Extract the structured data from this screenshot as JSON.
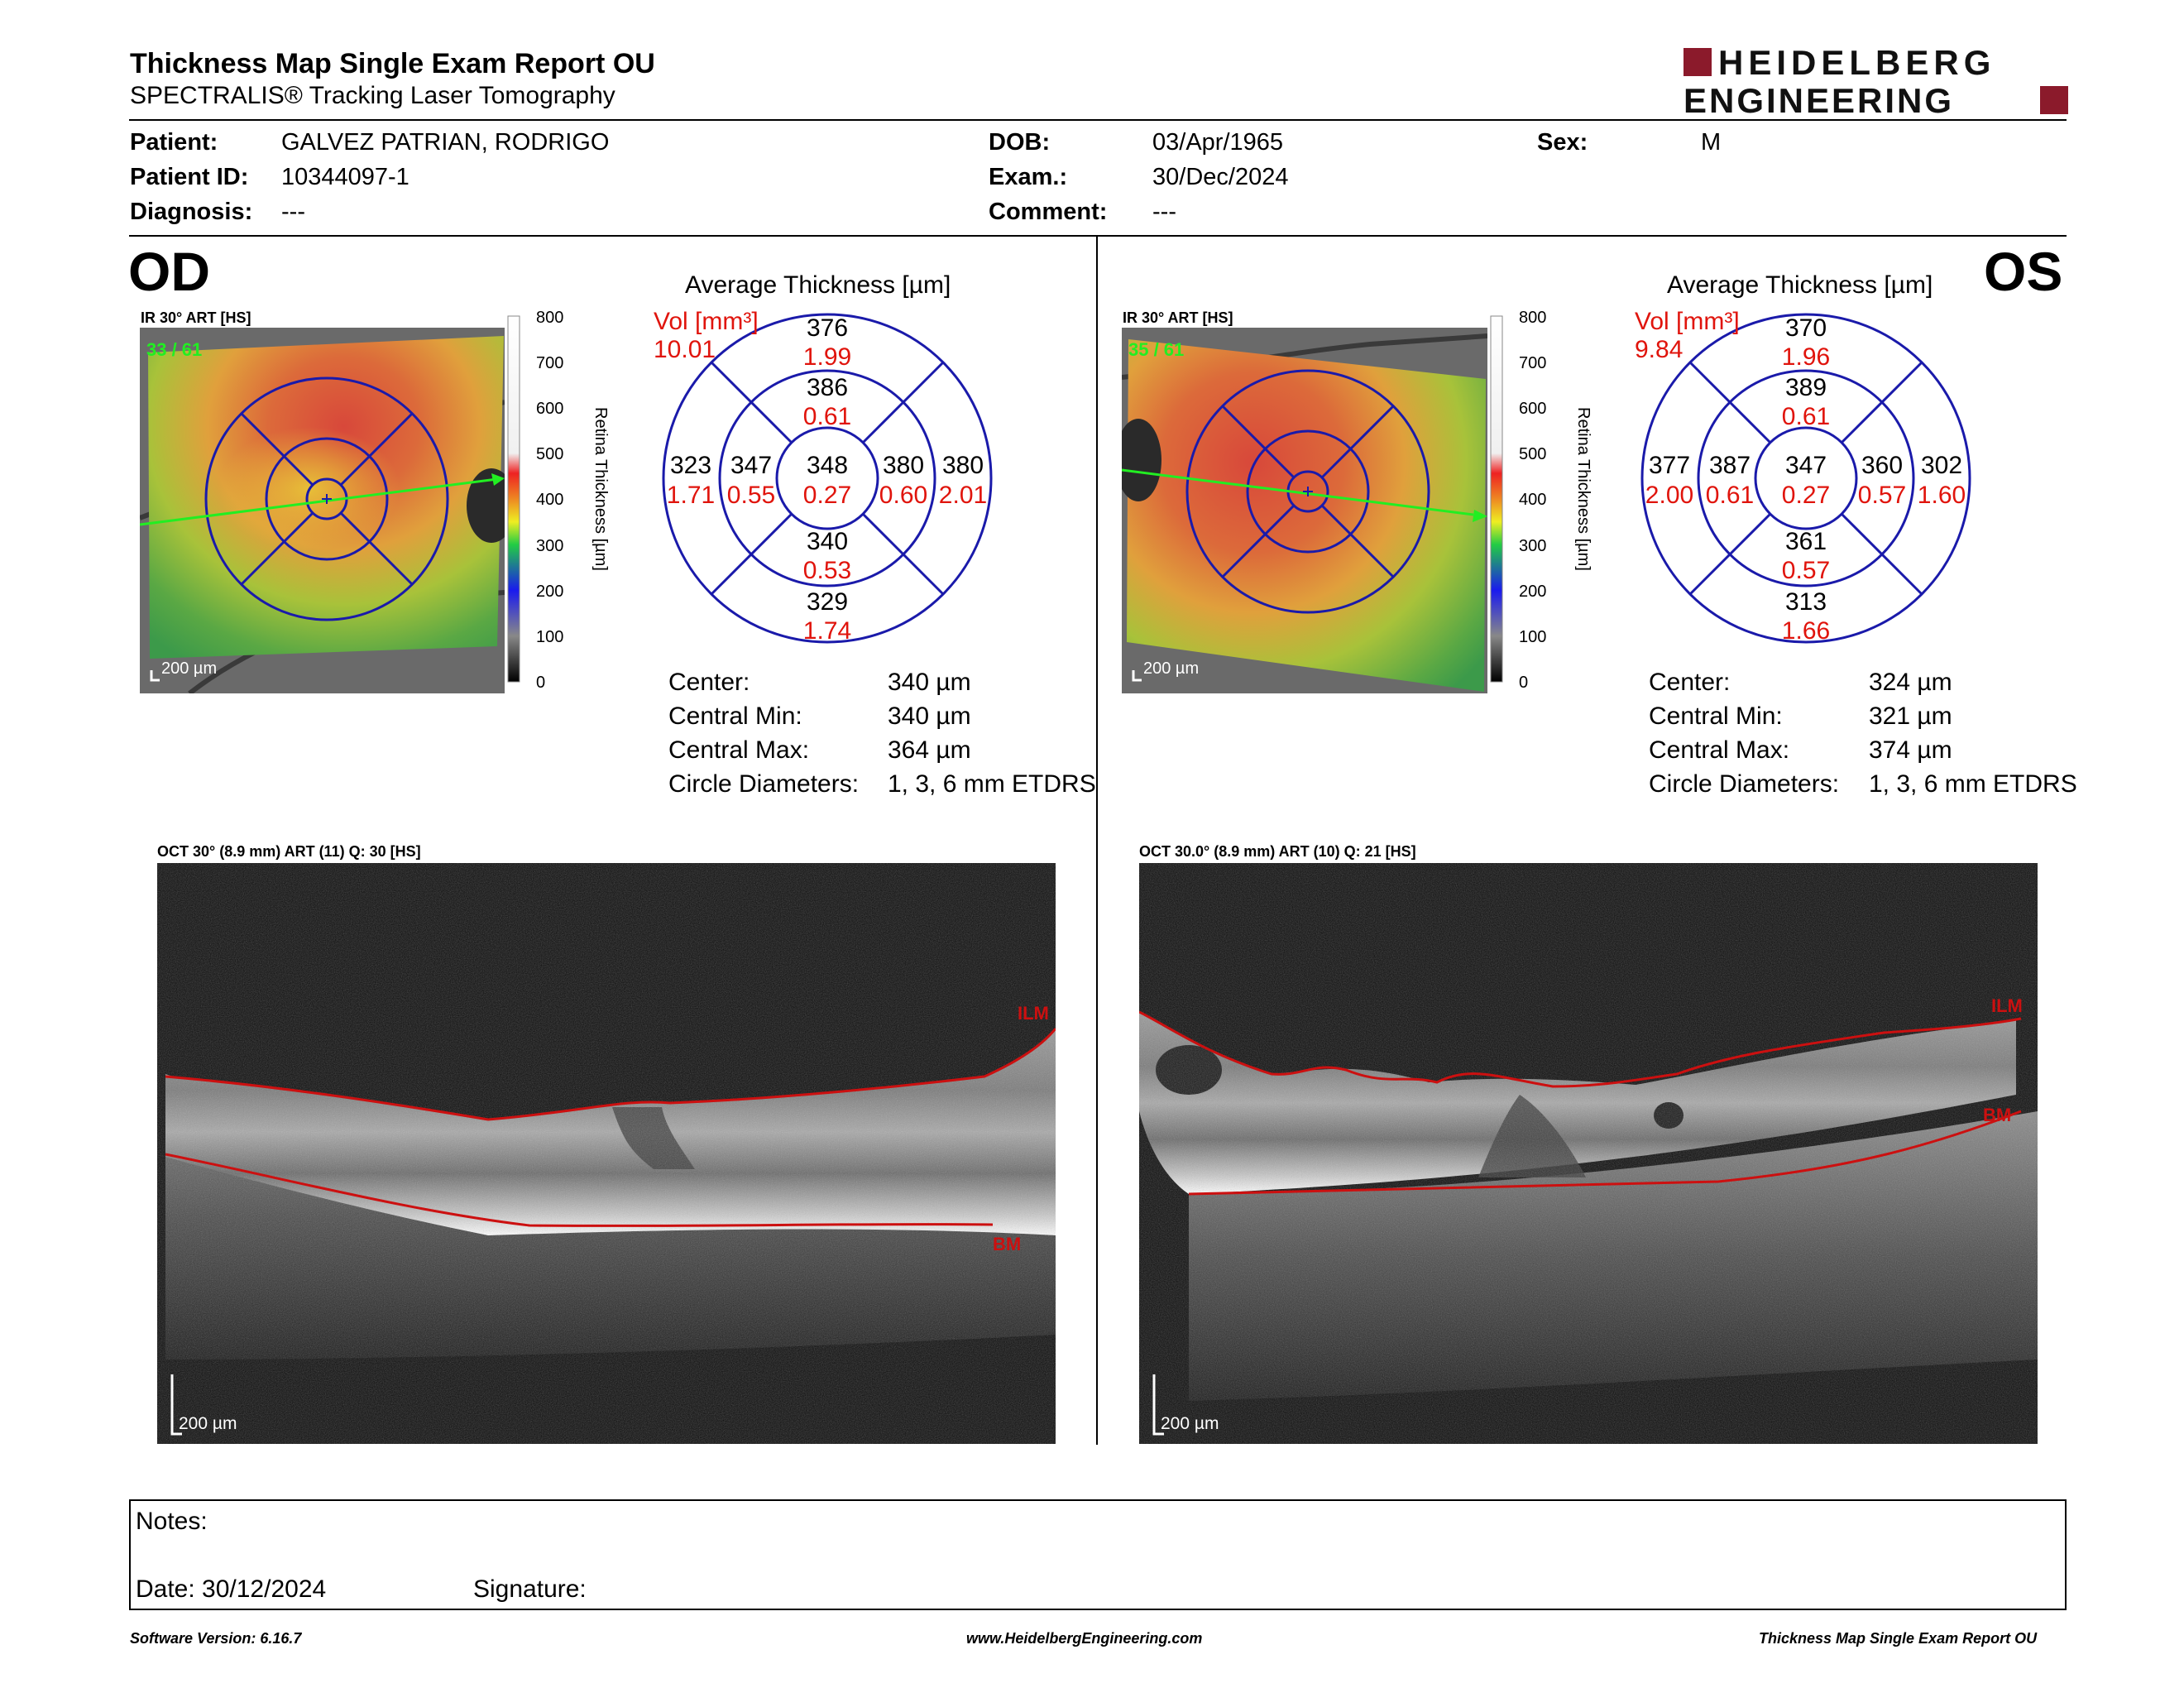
{
  "header": {
    "title": "Thickness Map Single Exam Report OU",
    "subtitle": "SPECTRALIS® Tracking Laser Tomography",
    "logo_line1": "HEIDELBERG",
    "logo_line2": "ENGINEERING",
    "logo_color": "#8b1a2b"
  },
  "patient": {
    "patient_label": "Patient:",
    "patient_value": "GALVEZ PATRIAN, RODRIGO",
    "id_label": "Patient ID:",
    "id_value": "10344097-1",
    "diagnosis_label": "Diagnosis:",
    "diagnosis_value": "---",
    "dob_label": "DOB:",
    "dob_value": "03/Apr/1965",
    "exam_label": "Exam.:",
    "exam_value": "30/Dec/2024",
    "comment_label": "Comment:",
    "comment_value": "---",
    "sex_label": "Sex:",
    "sex_value": "M"
  },
  "colorbar": {
    "ticks": [
      "800",
      "700",
      "600",
      "500",
      "400",
      "300",
      "200",
      "100",
      "0"
    ],
    "label": "Retina  Thickness [µm]"
  },
  "od": {
    "eye_label": "OD",
    "ir_label": "IR 30° ART [HS]",
    "ir_overlay": "33 / 61",
    "ir_scale": "200 µm",
    "avg_title": "Average Thickness [µm]",
    "vol_label": "Vol [mm³]",
    "vol_value": "10.01",
    "etdrs": {
      "superior_outer": {
        "t": "376",
        "v": "1.99"
      },
      "superior_inner": {
        "t": "386",
        "v": "0.61"
      },
      "temporal_outer": {
        "t": "323",
        "v": "1.71"
      },
      "temporal_inner": {
        "t": "347",
        "v": "0.55"
      },
      "center": {
        "t": "348",
        "v": "0.27"
      },
      "nasal_inner": {
        "t": "380",
        "v": "0.60"
      },
      "nasal_outer": {
        "t": "380",
        "v": "2.01"
      },
      "inferior_inner": {
        "t": "340",
        "v": "0.53"
      },
      "inferior_outer": {
        "t": "329",
        "v": "1.74"
      }
    },
    "stats": [
      {
        "label": "Center:",
        "value": "340 µm"
      },
      {
        "label": "Central Min:",
        "value": "340 µm"
      },
      {
        "label": "Central Max:",
        "value": "364 µm"
      },
      {
        "label": "Circle Diameters:",
        "value": "1, 3, 6 mm ETDRS"
      }
    ],
    "oct_label": "OCT 30° (8.9 mm) ART (11) Q: 30 [HS]",
    "oct_ilm": "ILM",
    "oct_bm": "BM",
    "oct_scale": "200 µm"
  },
  "os": {
    "eye_label": "OS",
    "ir_label": "IR 30° ART [HS]",
    "ir_overlay": "35 / 61",
    "ir_scale": "200 µm",
    "avg_title": "Average Thickness [µm]",
    "vol_label": "Vol [mm³]",
    "vol_value": "9.84",
    "etdrs": {
      "superior_outer": {
        "t": "370",
        "v": "1.96"
      },
      "superior_inner": {
        "t": "389",
        "v": "0.61"
      },
      "temporal_outer": {
        "t": "377",
        "v": "2.00"
      },
      "temporal_inner": {
        "t": "387",
        "v": "0.61"
      },
      "center": {
        "t": "347",
        "v": "0.27"
      },
      "nasal_inner": {
        "t": "360",
        "v": "0.57"
      },
      "nasal_outer": {
        "t": "302",
        "v": "1.60"
      },
      "inferior_inner": {
        "t": "361",
        "v": "0.57"
      },
      "inferior_outer": {
        "t": "313",
        "v": "1.66"
      }
    },
    "stats": [
      {
        "label": "Center:",
        "value": "324 µm"
      },
      {
        "label": "Central Min:",
        "value": "321 µm"
      },
      {
        "label": "Central Max:",
        "value": "374 µm"
      },
      {
        "label": "Circle Diameters:",
        "value": "1, 3, 6 mm ETDRS"
      }
    ],
    "oct_label": "OCT 30.0° (8.9 mm) ART (10) Q: 21 [HS]",
    "oct_ilm": "ILM",
    "oct_bm": "BM",
    "oct_scale": "200 µm"
  },
  "notes": {
    "notes_label": "Notes:",
    "date_label": "Date: 30/12/2024",
    "signature_label": "Signature:"
  },
  "footer": {
    "software": "Software Version: 6.16.7",
    "website": "www.HeidelbergEngineering.com",
    "report": "Thickness Map Single Exam Report OU"
  },
  "colors": {
    "etdrs_blue": "#1a1aaa",
    "value_red": "#e0140c",
    "ilm_red": "#cc1010",
    "overlay_green": "#22ee22"
  }
}
